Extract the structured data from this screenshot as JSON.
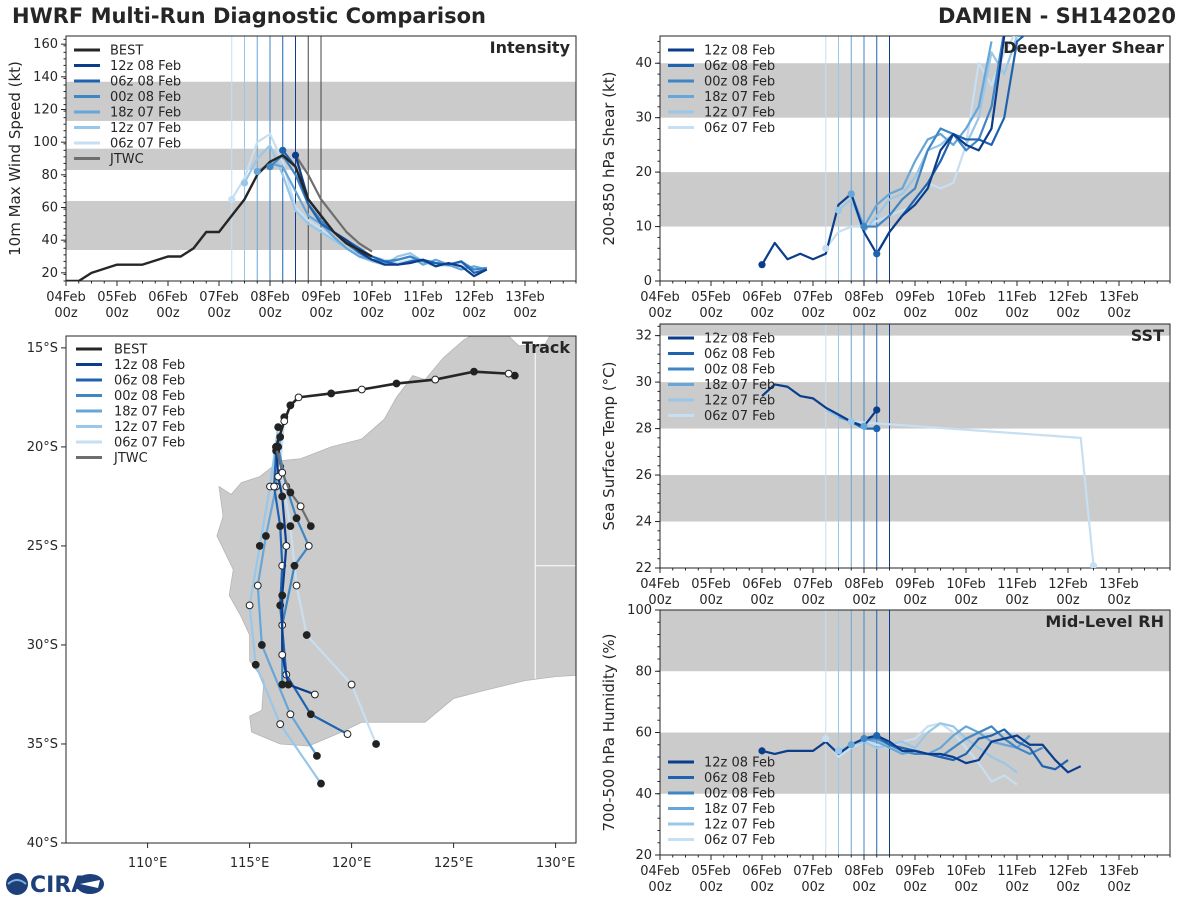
{
  "header": {
    "left": "HWRF Multi-Run Diagnostic Comparison",
    "right": "DAMIEN - SH142020"
  },
  "colors": {
    "best": "#262626",
    "jtwc": "#6e6e6e",
    "land": "#cbcbcb",
    "band": "#cbcbcb",
    "runs": [
      "#0b3d8c",
      "#1f63b0",
      "#3f86c4",
      "#67a6d8",
      "#99c7e8",
      "#c6dff2"
    ]
  },
  "time_axis": {
    "tick_labels": [
      [
        "04Feb",
        "00z"
      ],
      [
        "05Feb",
        "00z"
      ],
      [
        "06Feb",
        "00z"
      ],
      [
        "07Feb",
        "00z"
      ],
      [
        "08Feb",
        "00z"
      ],
      [
        "09Feb",
        "00z"
      ],
      [
        "10Feb",
        "00z"
      ],
      [
        "11Feb",
        "00z"
      ],
      [
        "12Feb",
        "00z"
      ],
      [
        "13Feb",
        "00z"
      ]
    ],
    "run_times_days": [
      4.5,
      4.25,
      4.0,
      3.75,
      3.5,
      3.25
    ],
    "best_marker_days": [
      4.75,
      5.0
    ]
  },
  "logo": {
    "text": "CIRA",
    "icon": "cira-satellite-icon"
  },
  "chart_data": [
    {
      "id": "intensity",
      "type": "line",
      "title": "Intensity",
      "ylabel": "10m Max Wind Speed (kt)",
      "xlim": [
        0,
        10
      ],
      "ylim": [
        15,
        165
      ],
      "yticks": [
        20,
        40,
        60,
        80,
        100,
        120,
        140,
        160
      ],
      "ytick_labels": [
        "20",
        "40",
        "60",
        "80",
        "100",
        "120",
        "140",
        "160"
      ],
      "bands": [
        [
          34,
          64
        ],
        [
          83,
          96
        ],
        [
          113,
          137
        ]
      ],
      "legend": [
        "BEST",
        "12z 08 Feb",
        "06z 08 Feb",
        "00z 08 Feb",
        "18z 07 Feb",
        "12z 07 Feb",
        "06z 07 Feb",
        "JTWC"
      ],
      "best": {
        "name": "BEST",
        "x": [
          0,
          0.25,
          0.5,
          1.0,
          1.25,
          1.5,
          2.0,
          2.25,
          2.5,
          2.75,
          3.0,
          3.25,
          3.5,
          3.75,
          4.0,
          4.25,
          4.5,
          4.75,
          5.0,
          5.25,
          5.5,
          6.0
        ],
        "y": [
          15,
          15,
          20,
          25,
          25,
          25,
          30,
          30,
          35,
          45,
          45,
          55,
          65,
          80,
          88,
          92,
          85,
          65,
          55,
          45,
          38,
          30
        ]
      },
      "jtwc": {
        "name": "JTWC",
        "x": [
          4.5,
          4.75,
          5.0,
          5.25,
          5.5,
          5.75,
          6.0
        ],
        "y": [
          92,
          80,
          65,
          55,
          45,
          38,
          33
        ]
      },
      "series": [
        {
          "name": "12z 08 Feb",
          "start": 4.5,
          "y": [
            92,
            65,
            55,
            45,
            40,
            33,
            28,
            25,
            25,
            26,
            28,
            24,
            26,
            24,
            18,
            22
          ]
        },
        {
          "name": "06z 08 Feb",
          "start": 4.25,
          "y": [
            95,
            85,
            62,
            50,
            45,
            40,
            35,
            30,
            27,
            25,
            27,
            28,
            26,
            25,
            27,
            20,
            22
          ]
        },
        {
          "name": "00z 08 Feb",
          "start": 4.0,
          "y": [
            85,
            92,
            80,
            62,
            52,
            45,
            38,
            32,
            28,
            27,
            28,
            30,
            27,
            26,
            25,
            27,
            22,
            23
          ]
        },
        {
          "name": "18z 07 Feb",
          "start": 3.75,
          "y": [
            82,
            87,
            85,
            70,
            55,
            50,
            42,
            35,
            30,
            28,
            26,
            28,
            30,
            25,
            28,
            25,
            22,
            24,
            22
          ]
        },
        {
          "name": "12z 07 Feb",
          "start": 3.5,
          "y": [
            75,
            90,
            98,
            80,
            58,
            50,
            45,
            40,
            35,
            30,
            27,
            25,
            30,
            32,
            27,
            24,
            26,
            24,
            22,
            23
          ]
        },
        {
          "name": "06z 07 Feb",
          "start": 3.25,
          "y": [
            65,
            78,
            100,
            105,
            88,
            60,
            52,
            47,
            40,
            35,
            32,
            30,
            28,
            26,
            28,
            27,
            25,
            24,
            26,
            22,
            23
          ]
        }
      ]
    },
    {
      "id": "track",
      "type": "line",
      "title": "Track",
      "xlim": [
        106,
        131
      ],
      "ylim": [
        -40,
        -14.4
      ],
      "xticks": [
        110,
        115,
        120,
        125,
        130
      ],
      "xtick_labels": [
        "110°E",
        "115°E",
        "120°E",
        "125°E",
        "130°E"
      ],
      "yticks": [
        -15,
        -20,
        -25,
        -30,
        -35,
        -40
      ],
      "ytick_labels": [
        "15°S",
        "20°S",
        "25°S",
        "30°S",
        "35°S",
        "40°S"
      ],
      "legend": [
        "BEST",
        "12z 08 Feb",
        "06z 08 Feb",
        "00z 08 Feb",
        "18z 07 Feb",
        "12z 07 Feb",
        "06z 07 Feb",
        "JTWC"
      ],
      "best": {
        "name": "BEST",
        "lon": [
          128.0,
          127.7,
          126.0,
          124.1,
          122.2,
          120.5,
          119.0,
          117.4,
          117.0,
          116.7,
          116.3
        ],
        "lat": [
          -16.4,
          -16.3,
          -16.2,
          -16.6,
          -16.8,
          -17.1,
          -17.3,
          -17.5,
          -17.9,
          -18.7,
          -20.0
        ]
      },
      "jtwc": {
        "name": "JTWC",
        "lon": [
          116.3,
          116.6,
          117.0,
          117.5,
          118.0
        ],
        "lat": [
          -20.0,
          -21.3,
          -22.3,
          -23.0,
          -24.0
        ]
      },
      "series": [
        {
          "name": "12z 08 Feb",
          "lon": [
            116.3,
            116.4,
            116.6,
            116.8,
            116.6,
            116.6,
            116.9,
            118.2
          ],
          "lat": [
            -20.0,
            -21.5,
            -22.5,
            -25.0,
            -27.5,
            -30.5,
            -32.0,
            -32.5
          ]
        },
        {
          "name": "06z 08 Feb",
          "lon": [
            116.3,
            116.2,
            116.5,
            116.6,
            116.5,
            116.8,
            118.0,
            119.8
          ],
          "lat": [
            -20.2,
            -22.0,
            -24.0,
            -26.0,
            -28.0,
            -31.5,
            -33.5,
            -34.5
          ]
        },
        {
          "name": "00z 08 Feb",
          "lon": [
            116.4,
            116.8,
            117.3,
            117.9,
            117.2,
            116.6,
            116.6
          ],
          "lat": [
            -20.0,
            -22.0,
            -23.6,
            -25.0,
            -26.0,
            -29.0,
            -32.0
          ]
        },
        {
          "name": "18z 07 Feb",
          "lon": [
            116.5,
            116.3,
            115.8,
            115.4,
            115.6,
            117.0,
            118.3
          ],
          "lat": [
            -19.5,
            -22.0,
            -24.5,
            -27.0,
            -30.0,
            -33.5,
            -35.6
          ]
        },
        {
          "name": "12z 07 Feb",
          "lon": [
            116.4,
            116.0,
            115.5,
            115.0,
            115.3,
            116.5,
            118.5
          ],
          "lat": [
            -19.0,
            -22.0,
            -25.0,
            -28.0,
            -31.0,
            -34.0,
            -37.0
          ]
        },
        {
          "name": "06z 07 Feb",
          "lon": [
            116.7,
            116.5,
            117.0,
            117.3,
            117.8,
            120.0,
            121.2
          ],
          "lat": [
            -18.5,
            -21.0,
            -24.0,
            -27.0,
            -29.5,
            -32.0,
            -35.0
          ]
        }
      ]
    },
    {
      "id": "shear",
      "type": "line",
      "title": "Deep-Layer Shear",
      "ylabel": "200-850 hPa Shear (kt)",
      "xlim": [
        0,
        10
      ],
      "ylim": [
        0,
        45
      ],
      "yticks": [
        0,
        10,
        20,
        30,
        40
      ],
      "ytick_labels": [
        "0",
        "10",
        "20",
        "30",
        "40"
      ],
      "bands": [
        [
          10,
          20
        ],
        [
          30,
          40
        ]
      ],
      "legend": [
        "12z 08 Feb",
        "06z 08 Feb",
        "00z 08 Feb",
        "18z 07 Feb",
        "12z 07 Feb",
        "06z 07 Feb"
      ],
      "series": [
        {
          "name": "12z 08 Feb",
          "x": [
            2.0,
            2.25,
            2.5,
            2.75,
            3.0,
            3.25,
            3.5,
            3.75,
            4.0,
            4.25,
            4.5,
            4.75,
            5.0,
            5.25,
            5.5,
            5.75,
            6.0,
            6.25,
            6.5,
            6.75
          ],
          "y": [
            3,
            7,
            4,
            5,
            4,
            5,
            14,
            16,
            9,
            5,
            9,
            12,
            14,
            17,
            24,
            27,
            25,
            24,
            28,
            45
          ]
        },
        {
          "name": "06z 08 Feb",
          "start": 4.25,
          "y": [
            5,
            9,
            12,
            15,
            18,
            22,
            27,
            26,
            26,
            25,
            30,
            44,
            46
          ]
        },
        {
          "name": "00z 08 Feb",
          "start": 4.0,
          "y": [
            10,
            10,
            12,
            15,
            17,
            24,
            28,
            27,
            24,
            26,
            32,
            46
          ]
        },
        {
          "name": "18z 07 Feb",
          "start": 3.75,
          "y": [
            16,
            10,
            14,
            16,
            17,
            22,
            26,
            27,
            25,
            28,
            32,
            44
          ]
        },
        {
          "name": "12z 07 Feb",
          "start": 3.5,
          "y": [
            13,
            15,
            9,
            12,
            15,
            16,
            19,
            24,
            25,
            27,
            25,
            30,
            42,
            38,
            45
          ]
        },
        {
          "name": "06z 07 Feb",
          "start": 3.25,
          "y": [
            6,
            9,
            10,
            10,
            11,
            12,
            13,
            14,
            18,
            17,
            18,
            25,
            40,
            36,
            42,
            46
          ]
        }
      ]
    },
    {
      "id": "sst",
      "type": "line",
      "title": "SST",
      "ylabel": "Sea Surface Temp (°C)",
      "xlim": [
        0,
        10
      ],
      "ylim": [
        22,
        32.5
      ],
      "yticks": [
        22,
        24,
        26,
        28,
        30,
        32
      ],
      "ytick_labels": [
        "22",
        "24",
        "26",
        "28",
        "30",
        "32"
      ],
      "bands": [
        [
          24,
          26
        ],
        [
          28,
          30
        ],
        [
          32,
          32.5
        ]
      ],
      "legend": [
        "12z 08 Feb",
        "06z 08 Feb",
        "00z 08 Feb",
        "18z 07 Feb",
        "12z 07 Feb",
        "06z 07 Feb"
      ],
      "series": [
        {
          "name": "12z 08 Feb",
          "x": [
            2.0,
            2.25,
            2.5,
            2.75,
            3.0,
            3.25,
            3.5,
            3.75,
            4.0,
            4.25
          ],
          "y": [
            29.4,
            29.9,
            29.8,
            29.4,
            29.3,
            28.9,
            28.6,
            28.3,
            28.1,
            28.8
          ]
        },
        {
          "name": "06z 08 Feb",
          "x": [
            3.75,
            4.0,
            4.25
          ],
          "y": [
            28.3,
            28.0,
            28.0
          ]
        },
        {
          "name": "00z 08 Feb",
          "x": [
            3.75,
            4.0,
            4.25
          ],
          "y": [
            28.3,
            28.0,
            28.0
          ]
        },
        {
          "name": "18z 07 Feb",
          "x": [
            3.5,
            3.75,
            4.0
          ],
          "y": [
            28.5,
            28.3,
            28.1
          ]
        },
        {
          "name": "12z 07 Feb",
          "x": [
            3.25,
            3.5,
            3.75
          ],
          "y": [
            28.8,
            28.5,
            28.3
          ]
        },
        {
          "name": "06z 07 Feb",
          "x": [
            3.25,
            3.5,
            3.75,
            8.25,
            8.5
          ],
          "y": [
            28.8,
            28.5,
            28.3,
            27.6,
            22.1
          ]
        }
      ]
    },
    {
      "id": "rh",
      "type": "line",
      "title": "Mid-Level RH",
      "ylabel": "700-500 hPa Humidity (%)",
      "xlim": [
        0,
        10
      ],
      "ylim": [
        20,
        100
      ],
      "yticks": [
        20,
        40,
        60,
        80,
        100
      ],
      "ytick_labels": [
        "20",
        "40",
        "60",
        "80",
        "100"
      ],
      "bands": [
        [
          40,
          60
        ],
        [
          80,
          100
        ]
      ],
      "legend": [
        "12z 08 Feb",
        "06z 08 Feb",
        "00z 08 Feb",
        "18z 07 Feb",
        "12z 07 Feb",
        "06z 07 Feb"
      ],
      "series": [
        {
          "name": "12z 08 Feb",
          "x": [
            2.0,
            2.25,
            2.5,
            2.75,
            3.0,
            3.25,
            3.5,
            3.75,
            4.0,
            4.25,
            4.5,
            4.75,
            5.0,
            5.25,
            5.5,
            5.75,
            6.0,
            6.25,
            6.5,
            6.75,
            7.0,
            7.25,
            7.5,
            7.75,
            8.0,
            8.25
          ],
          "y": [
            54,
            53,
            54,
            54,
            54,
            57,
            53,
            56,
            58,
            59,
            57,
            54,
            54,
            53,
            53,
            52,
            50,
            51,
            57,
            58,
            59,
            56,
            56,
            51,
            47,
            49
          ]
        },
        {
          "name": "06z 08 Feb",
          "start": 4.25,
          "y": [
            59,
            56,
            55,
            54,
            53,
            52,
            51,
            53,
            58,
            59,
            61,
            57,
            55,
            49,
            48,
            51
          ]
        },
        {
          "name": "00z 08 Feb",
          "start": 4.0,
          "y": [
            58,
            58,
            56,
            54,
            53,
            53,
            52,
            55,
            58,
            60,
            62,
            58,
            55,
            53,
            55
          ]
        },
        {
          "name": "18z 07 Feb",
          "start": 3.75,
          "y": [
            56,
            58,
            57,
            55,
            53,
            54,
            53,
            55,
            59,
            62,
            60,
            57,
            56,
            55,
            59
          ]
        },
        {
          "name": "12z 07 Feb",
          "start": 3.5,
          "y": [
            54,
            56,
            57,
            55,
            56,
            57,
            55,
            60,
            63,
            62,
            58,
            55,
            52,
            50,
            47
          ]
        },
        {
          "name": "06z 07 Feb",
          "start": 3.25,
          "y": [
            58,
            52,
            55,
            57,
            56,
            55,
            57,
            58,
            62,
            63,
            60,
            55,
            50,
            44,
            46,
            43
          ]
        }
      ]
    }
  ]
}
